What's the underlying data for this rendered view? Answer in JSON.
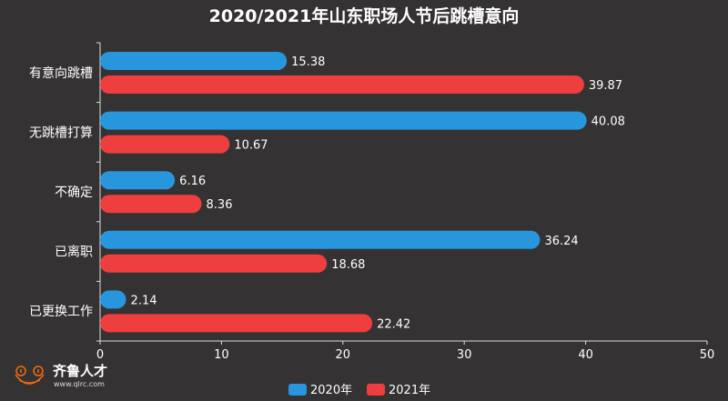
{
  "chart_data": {
    "type": "bar",
    "orientation": "horizontal",
    "title": "2020/2021年山东职场人节后跳槽意向",
    "categories": [
      "有意向跳槽",
      "无跳槽打算",
      "不确定",
      "已离职",
      "已更换工作"
    ],
    "series": [
      {
        "name": "2020年",
        "color": "#2896dc",
        "values": [
          15.38,
          40.08,
          6.16,
          36.24,
          2.14
        ]
      },
      {
        "name": "2021年",
        "color": "#ef3e3e",
        "values": [
          39.87,
          10.67,
          8.36,
          18.68,
          22.42
        ]
      }
    ],
    "xlim": [
      0,
      50
    ],
    "xticks": [
      0,
      10,
      20,
      30,
      40,
      50
    ],
    "grid": false,
    "legend": "bottom-center"
  },
  "logo": {
    "name": "齐鲁人才",
    "url": "www.qlrc.com"
  }
}
